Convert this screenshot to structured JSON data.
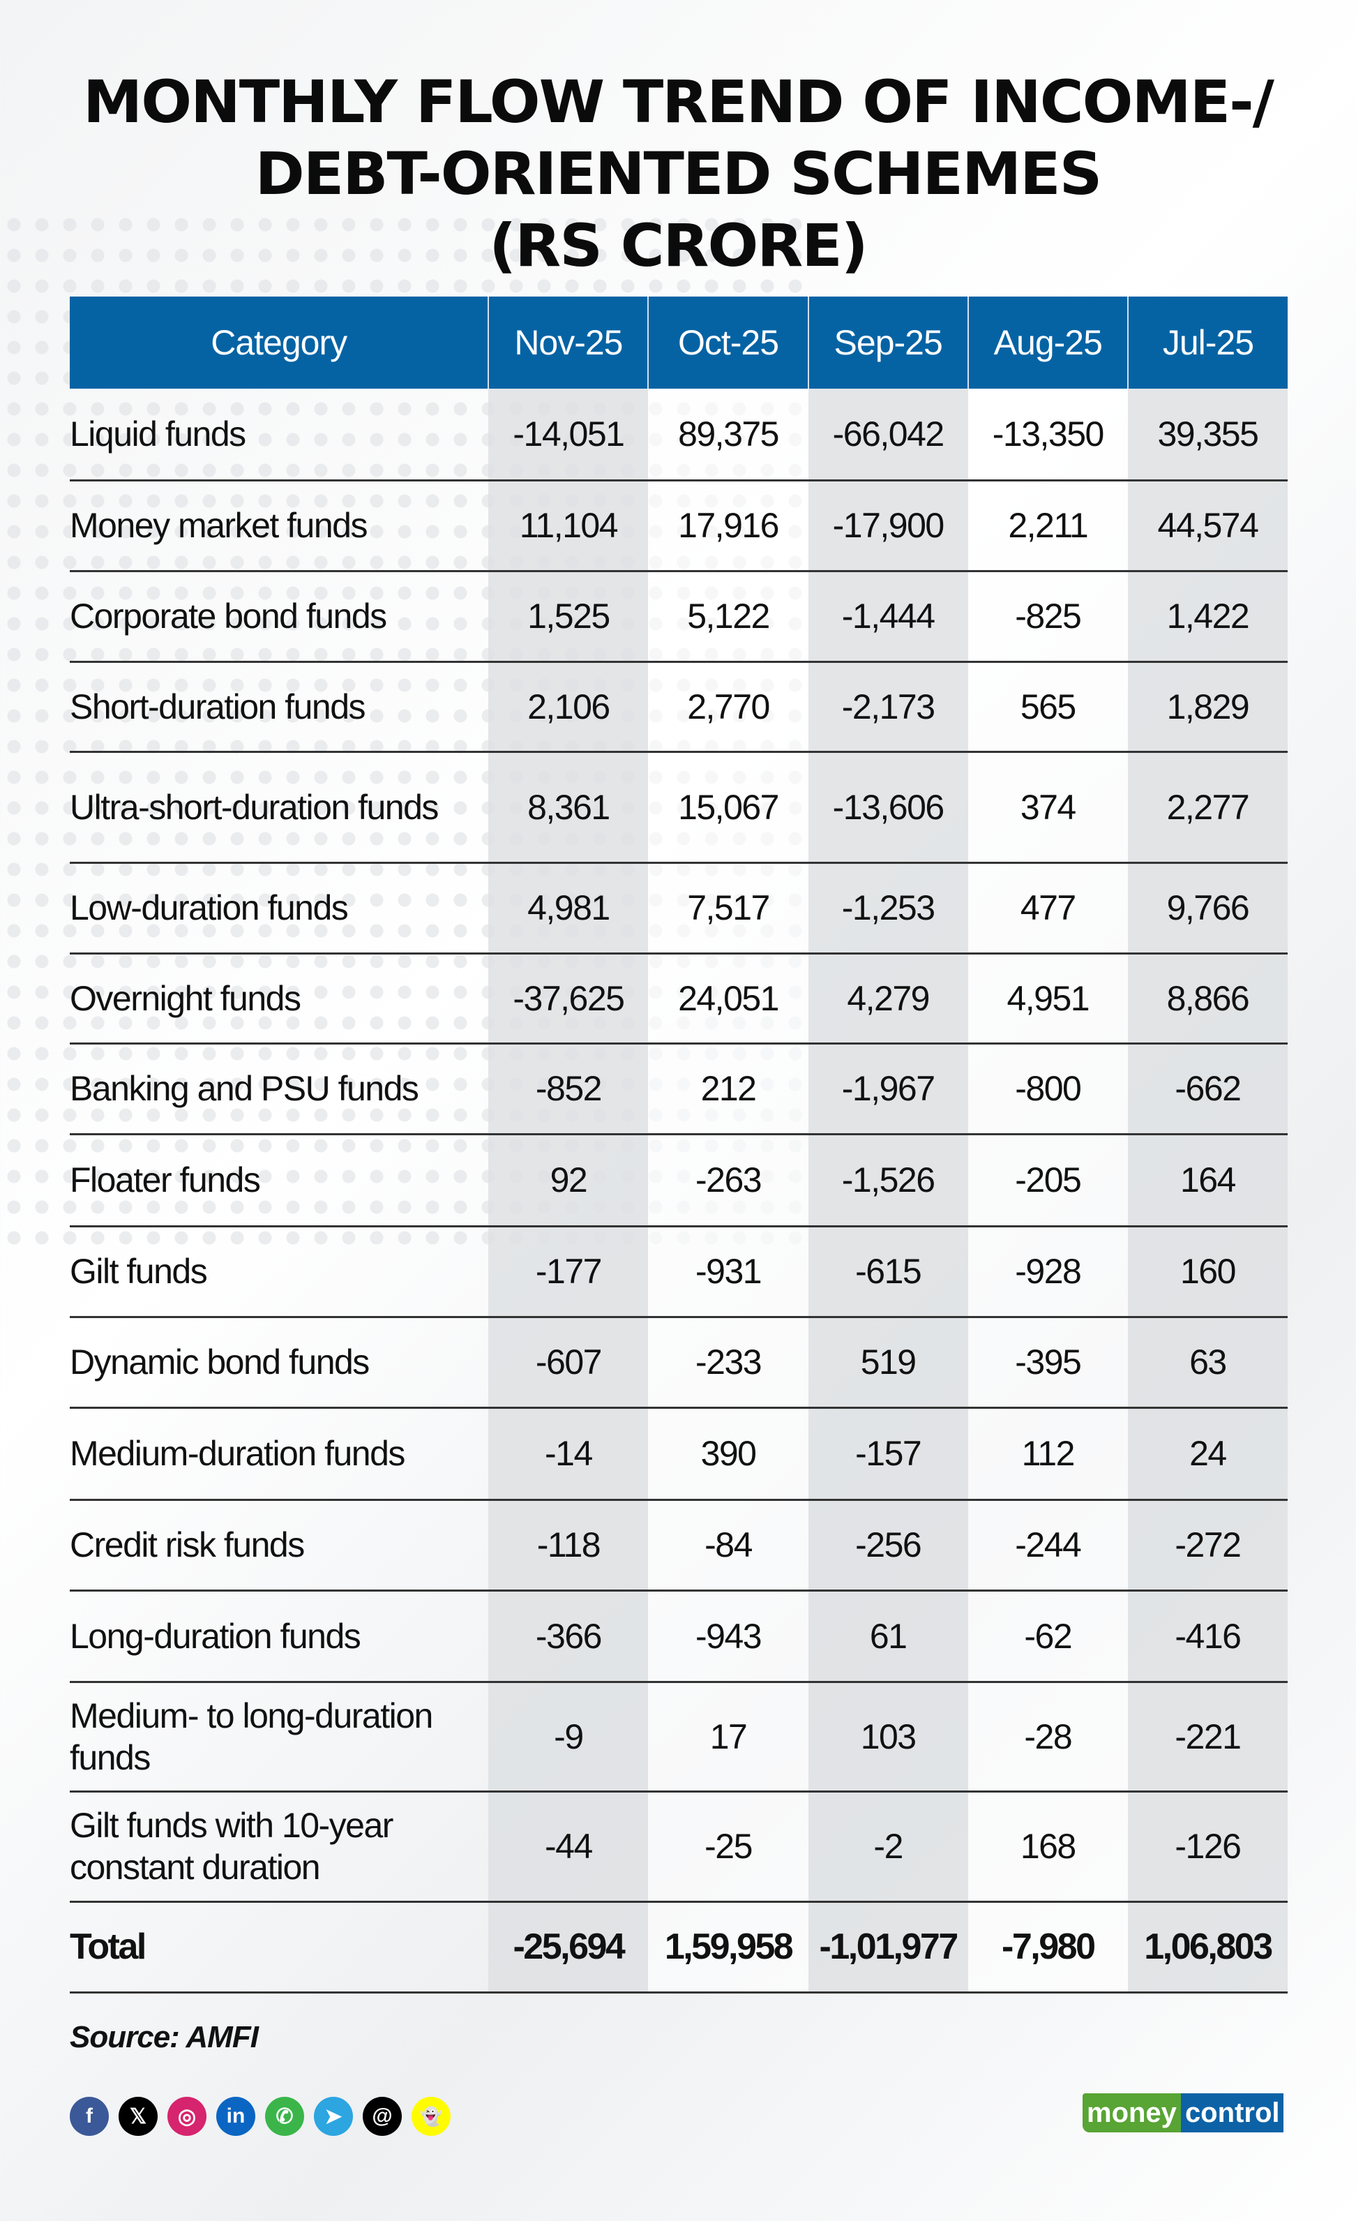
{
  "title": {
    "line1": "MONTHLY FLOW TREND OF INCOME-/",
    "line2": "DEBT-ORIENTED SCHEMES",
    "line3": "(RS CRORE)"
  },
  "colors": {
    "header": "#0563a4",
    "shaded_column": "#e1e3e6",
    "logo_green": "#58a434",
    "logo_blue": "#0d62a6"
  },
  "chart_data": {
    "type": "table",
    "title": "MONTHLY FLOW TREND OF INCOME-/DEBT-ORIENTED SCHEMES (RS CRORE)",
    "columns": [
      "Category",
      "Nov-25",
      "Oct-25",
      "Sep-25",
      "Aug-25",
      "Jul-25"
    ],
    "rows": [
      {
        "category": "Liquid funds",
        "values": [
          "-14,051",
          "89,375",
          "-66,042",
          "-13,350",
          "39,355"
        ]
      },
      {
        "category": "Money market funds",
        "values": [
          "11,104",
          "17,916",
          "-17,900",
          "2,211",
          "44,574"
        ]
      },
      {
        "category": "Corporate bond funds",
        "values": [
          "1,525",
          "5,122",
          "-1,444",
          "-825",
          "1,422"
        ]
      },
      {
        "category": "Short-duration funds",
        "values": [
          "2,106",
          "2,770",
          "-2,173",
          "565",
          "1,829"
        ]
      },
      {
        "category": "Ultra-short-duration funds",
        "values": [
          "8,361",
          "15,067",
          "-13,606",
          "374",
          "2,277"
        ]
      },
      {
        "category": "Low-duration funds",
        "values": [
          "4,981",
          "7,517",
          "-1,253",
          "477",
          "9,766"
        ]
      },
      {
        "category": "Overnight funds",
        "values": [
          "-37,625",
          "24,051",
          "4,279",
          "4,951",
          "8,866"
        ]
      },
      {
        "category": "Banking and PSU funds",
        "values": [
          "-852",
          "212",
          "-1,967",
          "-800",
          "-662"
        ]
      },
      {
        "category": "Floater funds",
        "values": [
          "92",
          "-263",
          "-1,526",
          "-205",
          "164"
        ]
      },
      {
        "category": "Gilt funds",
        "values": [
          "-177",
          "-931",
          "-615",
          "-928",
          "160"
        ]
      },
      {
        "category": "Dynamic bond funds",
        "values": [
          "-607",
          "-233",
          "519",
          "-395",
          "63"
        ]
      },
      {
        "category": "Medium-duration funds",
        "values": [
          "-14",
          "390",
          "-157",
          "112",
          "24"
        ]
      },
      {
        "category": "Credit risk funds",
        "values": [
          "-118",
          "-84",
          "-256",
          "-244",
          "-272"
        ]
      },
      {
        "category": "Long-duration funds",
        "values": [
          "-366",
          "-943",
          "61",
          "-62",
          "-416"
        ]
      },
      {
        "category": "Medium- to long-duration funds",
        "values": [
          "-9",
          "17",
          "103",
          "-28",
          "-221"
        ]
      },
      {
        "category": "Gilt funds with 10-year constant duration",
        "values": [
          "-44",
          "-25",
          "-2",
          "168",
          "-126"
        ]
      },
      {
        "category": "Total",
        "values": [
          "-25,694",
          "1,59,958",
          "-1,01,977",
          "-7,980",
          "1,06,803"
        ]
      }
    ]
  },
  "footer": {
    "source": "Source: AMFI",
    "social_icons": [
      "facebook-icon",
      "x-icon",
      "instagram-icon",
      "linkedin-icon",
      "whatsapp-icon",
      "telegram-icon",
      "threads-icon",
      "snapchat-icon"
    ],
    "logo": {
      "part1": "money",
      "part2": "control"
    }
  }
}
